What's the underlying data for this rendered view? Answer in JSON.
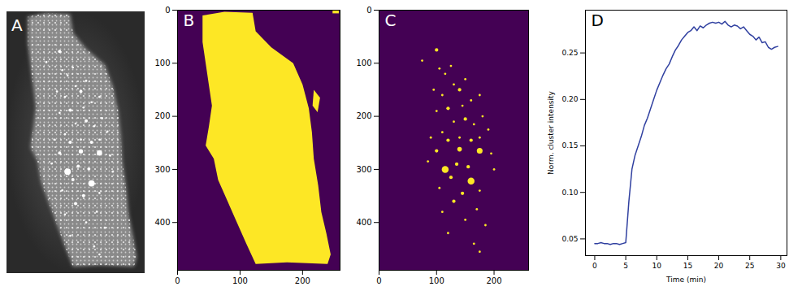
{
  "chart_data": [
    {
      "type": "image",
      "panel_label": "A",
      "tick_labels": false
    },
    {
      "type": "image",
      "panel_label": "B",
      "color": "#fde725",
      "xlim": [
        0,
        260
      ],
      "ylim": [
        490,
        0
      ],
      "xticks": [
        0,
        100,
        200
      ],
      "yticks": [
        0,
        100,
        200,
        300,
        400
      ],
      "regions": [
        [
          [
            40,
            10
          ],
          [
            75,
            3
          ],
          [
            120,
            5
          ],
          [
            125,
            40
          ],
          [
            150,
            70
          ],
          [
            185,
            100
          ],
          [
            200,
            140
          ],
          [
            210,
            185
          ],
          [
            215,
            230
          ],
          [
            218,
            280
          ],
          [
            225,
            330
          ],
          [
            230,
            380
          ],
          [
            238,
            420
          ],
          [
            245,
            460
          ],
          [
            240,
            478
          ],
          [
            175,
            475
          ],
          [
            125,
            478
          ],
          [
            110,
            440
          ],
          [
            95,
            400
          ],
          [
            80,
            360
          ],
          [
            65,
            320
          ],
          [
            58,
            280
          ],
          [
            45,
            255
          ],
          [
            50,
            220
          ],
          [
            55,
            180
          ],
          [
            50,
            140
          ],
          [
            45,
            100
          ],
          [
            40,
            60
          ]
        ],
        [
          [
            248,
            0
          ],
          [
            258,
            0
          ],
          [
            258,
            6
          ],
          [
            248,
            6
          ]
        ],
        [
          [
            218,
            150
          ],
          [
            228,
            165
          ],
          [
            224,
            192
          ],
          [
            216,
            180
          ]
        ]
      ]
    },
    {
      "type": "image",
      "panel_label": "C",
      "color": "#fde725",
      "xlim": [
        0,
        260
      ],
      "ylim": [
        490,
        0
      ],
      "xticks": [
        0,
        100,
        200
      ],
      "yticks": [
        0,
        100,
        200,
        300,
        400
      ],
      "spots": [
        {
          "x": 75,
          "y": 95,
          "r": 2
        },
        {
          "x": 100,
          "y": 75,
          "r": 3
        },
        {
          "x": 105,
          "y": 110,
          "r": 2
        },
        {
          "x": 115,
          "y": 120,
          "r": 2
        },
        {
          "x": 125,
          "y": 105,
          "r": 2
        },
        {
          "x": 130,
          "y": 140,
          "r": 2
        },
        {
          "x": 140,
          "y": 150,
          "r": 3
        },
        {
          "x": 150,
          "y": 130,
          "r": 2
        },
        {
          "x": 95,
          "y": 150,
          "r": 2
        },
        {
          "x": 110,
          "y": 160,
          "r": 2
        },
        {
          "x": 100,
          "y": 190,
          "r": 2
        },
        {
          "x": 120,
          "y": 185,
          "r": 3
        },
        {
          "x": 145,
          "y": 180,
          "r": 2
        },
        {
          "x": 160,
          "y": 170,
          "r": 2
        },
        {
          "x": 175,
          "y": 160,
          "r": 2
        },
        {
          "x": 130,
          "y": 210,
          "r": 2
        },
        {
          "x": 150,
          "y": 205,
          "r": 3
        },
        {
          "x": 165,
          "y": 215,
          "r": 2
        },
        {
          "x": 180,
          "y": 200,
          "r": 2
        },
        {
          "x": 190,
          "y": 225,
          "r": 2
        },
        {
          "x": 110,
          "y": 230,
          "r": 2
        },
        {
          "x": 90,
          "y": 240,
          "r": 2
        },
        {
          "x": 120,
          "y": 245,
          "r": 3
        },
        {
          "x": 140,
          "y": 240,
          "r": 2
        },
        {
          "x": 160,
          "y": 245,
          "r": 3
        },
        {
          "x": 175,
          "y": 240,
          "r": 2
        },
        {
          "x": 100,
          "y": 265,
          "r": 3
        },
        {
          "x": 140,
          "y": 262,
          "r": 4
        },
        {
          "x": 175,
          "y": 265,
          "r": 5
        },
        {
          "x": 85,
          "y": 285,
          "r": 2
        },
        {
          "x": 115,
          "y": 300,
          "r": 6
        },
        {
          "x": 135,
          "y": 290,
          "r": 3
        },
        {
          "x": 155,
          "y": 295,
          "r": 3
        },
        {
          "x": 125,
          "y": 315,
          "r": 3
        },
        {
          "x": 160,
          "y": 322,
          "r": 6
        },
        {
          "x": 105,
          "y": 335,
          "r": 2
        },
        {
          "x": 145,
          "y": 345,
          "r": 3
        },
        {
          "x": 175,
          "y": 340,
          "r": 2
        },
        {
          "x": 130,
          "y": 360,
          "r": 3
        },
        {
          "x": 170,
          "y": 375,
          "r": 2
        },
        {
          "x": 110,
          "y": 380,
          "r": 2
        },
        {
          "x": 150,
          "y": 395,
          "r": 2
        },
        {
          "x": 185,
          "y": 405,
          "r": 2
        },
        {
          "x": 165,
          "y": 440,
          "r": 2
        },
        {
          "x": 175,
          "y": 455,
          "r": 2
        },
        {
          "x": 120,
          "y": 420,
          "r": 2
        },
        {
          "x": 200,
          "y": 300,
          "r": 2
        },
        {
          "x": 195,
          "y": 270,
          "r": 2
        }
      ]
    },
    {
      "type": "line",
      "panel_label": "D",
      "color": "#3040a0",
      "xlabel": "Time (min)",
      "ylabel": "Norm. cluster intensity",
      "xlim": [
        -1.5,
        31
      ],
      "ylim": [
        0.032,
        0.296
      ],
      "xticks": [
        0,
        5,
        10,
        15,
        20,
        25,
        30
      ],
      "yticks": [
        0.05,
        {
          "value": 0.1,
          "label": "0.10"
        },
        0.15,
        {
          "value": 0.2,
          "label": "0.20"
        },
        0.25
      ],
      "x": [
        0,
        0.5,
        1,
        1.5,
        2,
        2.5,
        3,
        3.5,
        4,
        4.5,
        5,
        5.5,
        6,
        6.5,
        7,
        7.5,
        8,
        8.5,
        9,
        9.5,
        10,
        10.5,
        11,
        11.5,
        12,
        12.5,
        13,
        13.5,
        14,
        14.5,
        15,
        15.5,
        16,
        16.5,
        17,
        17.5,
        18,
        18.5,
        19,
        19.5,
        20,
        20.5,
        21,
        21.5,
        22,
        22.5,
        23,
        23.5,
        24,
        24.5,
        25,
        25.5,
        26,
        26.5,
        27,
        27.5,
        28,
        28.5,
        29,
        29.5
      ],
      "values": [
        0.045,
        0.045,
        0.046,
        0.045,
        0.045,
        0.044,
        0.045,
        0.045,
        0.044,
        0.045,
        0.046,
        0.09,
        0.125,
        0.14,
        0.15,
        0.16,
        0.172,
        0.18,
        0.19,
        0.2,
        0.21,
        0.218,
        0.226,
        0.233,
        0.238,
        0.246,
        0.253,
        0.258,
        0.264,
        0.268,
        0.272,
        0.274,
        0.278,
        0.274,
        0.279,
        0.277,
        0.28,
        0.282,
        0.283,
        0.282,
        0.283,
        0.281,
        0.284,
        0.28,
        0.278,
        0.28,
        0.279,
        0.276,
        0.278,
        0.274,
        0.27,
        0.268,
        0.264,
        0.267,
        0.261,
        0.262,
        0.256,
        0.254,
        0.256,
        0.257
      ]
    }
  ]
}
